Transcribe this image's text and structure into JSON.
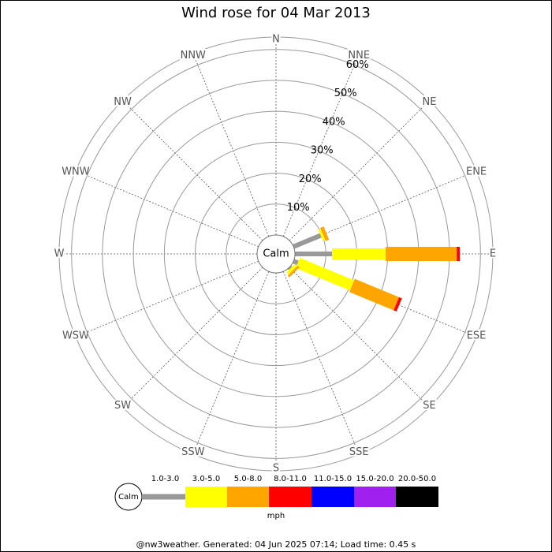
{
  "chart_data": {
    "type": "windrose",
    "title": "Wind rose for 04 Mar 2013",
    "directions": [
      "N",
      "NNE",
      "NE",
      "ENE",
      "E",
      "ESE",
      "SE",
      "SSE",
      "S",
      "SSW",
      "SW",
      "WSW",
      "W",
      "WNW",
      "NW",
      "NNW"
    ],
    "calm_label": "Calm",
    "ylim": [
      0,
      64
    ],
    "yticks": [
      {
        "value": 10,
        "label": "10%"
      },
      {
        "value": 20,
        "label": "20%"
      },
      {
        "value": 30,
        "label": "30%"
      },
      {
        "value": 40,
        "label": "40%"
      },
      {
        "value": 50,
        "label": "50%"
      },
      {
        "value": 60,
        "label": "60%"
      }
    ],
    "series": [
      {
        "name": "1.0-3.0",
        "color": "#999999",
        "values": [
          0,
          0,
          0,
          9.5,
          12,
          1.5,
          0.5,
          0,
          0,
          0,
          0,
          0,
          0,
          0,
          0,
          0
        ]
      },
      {
        "name": "3.0-5.0",
        "color": "#ffff00",
        "values": [
          0,
          0,
          0,
          0.8,
          17.3,
          19,
          1,
          0,
          0,
          0,
          0,
          0,
          0,
          0,
          0,
          0
        ]
      },
      {
        "name": "5.0-8.0",
        "color": "#ffa500",
        "values": [
          0,
          0,
          0,
          1.2,
          23,
          15.5,
          0.8,
          0,
          0,
          0,
          0,
          0,
          0,
          0,
          0,
          0
        ]
      },
      {
        "name": "8.0-11.0",
        "color": "#ff0000",
        "values": [
          0,
          0,
          0,
          0,
          1,
          1,
          0,
          0,
          0,
          0,
          0,
          0,
          0,
          0,
          0,
          0
        ]
      },
      {
        "name": "11.0-15.0",
        "color": "#0000ff",
        "values": [
          0,
          0,
          0,
          0,
          0,
          0,
          0,
          0,
          0,
          0,
          0,
          0,
          0,
          0,
          0,
          0
        ]
      },
      {
        "name": "15.0-20.0",
        "color": "#a020f0",
        "values": [
          0,
          0,
          0,
          0,
          0,
          0,
          0,
          0,
          0,
          0,
          0,
          0,
          0,
          0,
          0,
          0
        ]
      },
      {
        "name": "20.0-50.0",
        "color": "#000000",
        "values": [
          0,
          0,
          0,
          0,
          0,
          0,
          0,
          0,
          0,
          0,
          0,
          0,
          0,
          0,
          0,
          0
        ]
      }
    ],
    "unit": "mph",
    "footer": "@nw3weather. Generated: 04 Jun 2025 07:14; Load time: 0.45 s"
  }
}
